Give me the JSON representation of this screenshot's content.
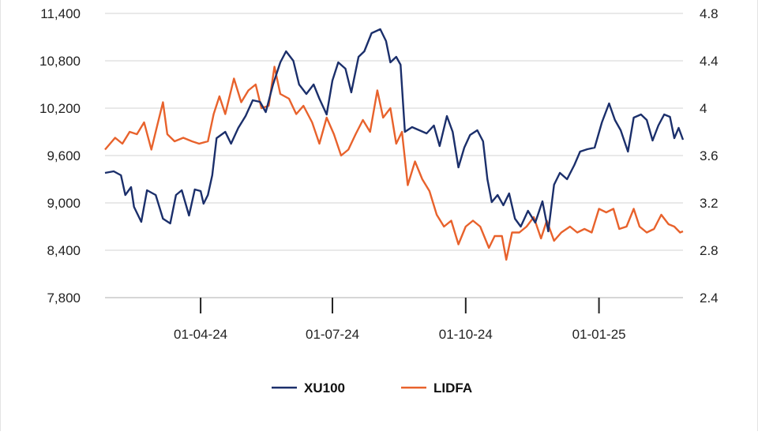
{
  "chart_data": {
    "type": "line",
    "title": "",
    "xlabel": "",
    "ylabel": "",
    "y_left": {
      "ticks": [
        7800,
        8400,
        9000,
        9600,
        10200,
        10800,
        11400
      ],
      "tick_labels": [
        "7,800",
        "8,400",
        "9,000",
        "9,600",
        "10,200",
        "10,800",
        "11,400"
      ],
      "range": [
        7800,
        11400
      ]
    },
    "y_right": {
      "ticks": [
        2.4,
        2.8,
        3.2,
        3.6,
        4.0,
        4.4,
        4.8
      ],
      "tick_labels": [
        "2.4",
        "2.8",
        "3.2",
        "3.6",
        "4",
        "4.4",
        "4.8"
      ],
      "range": [
        2.4,
        4.8
      ]
    },
    "x_range": [
      "2024-01-26",
      "2025-02-28"
    ],
    "x_ticks": [
      {
        "date": "2024-04-01",
        "label": "01-04-24"
      },
      {
        "date": "2024-07-01",
        "label": "01-07-24"
      },
      {
        "date": "2024-10-01",
        "label": "01-10-24"
      },
      {
        "date": "2025-01-01",
        "label": "01-01-25"
      }
    ],
    "grid": "horizontal",
    "legend": "bottom-center",
    "series": [
      {
        "name": "XU100",
        "axis": "left",
        "color": "#1b2f6b",
        "points": [
          [
            "2024-01-26",
            9380
          ],
          [
            "2024-02-01",
            9400
          ],
          [
            "2024-02-06",
            9350
          ],
          [
            "2024-02-09",
            9100
          ],
          [
            "2024-02-13",
            9200
          ],
          [
            "2024-02-15",
            8950
          ],
          [
            "2024-02-20",
            8760
          ],
          [
            "2024-02-24",
            9160
          ],
          [
            "2024-03-01",
            9100
          ],
          [
            "2024-03-06",
            8800
          ],
          [
            "2024-03-11",
            8740
          ],
          [
            "2024-03-15",
            9100
          ],
          [
            "2024-03-19",
            9160
          ],
          [
            "2024-03-24",
            8840
          ],
          [
            "2024-03-28",
            9170
          ],
          [
            "2024-04-01",
            9150
          ],
          [
            "2024-04-03",
            8990
          ],
          [
            "2024-04-06",
            9100
          ],
          [
            "2024-04-09",
            9350
          ],
          [
            "2024-04-12",
            9820
          ],
          [
            "2024-04-18",
            9900
          ],
          [
            "2024-04-22",
            9750
          ],
          [
            "2024-04-27",
            9950
          ],
          [
            "2024-05-02",
            10100
          ],
          [
            "2024-05-07",
            10300
          ],
          [
            "2024-05-12",
            10280
          ],
          [
            "2024-05-16",
            10150
          ],
          [
            "2024-05-21",
            10500
          ],
          [
            "2024-05-26",
            10780
          ],
          [
            "2024-05-30",
            10920
          ],
          [
            "2024-06-04",
            10800
          ],
          [
            "2024-06-08",
            10500
          ],
          [
            "2024-06-13",
            10380
          ],
          [
            "2024-06-18",
            10500
          ],
          [
            "2024-06-22",
            10320
          ],
          [
            "2024-06-27",
            10120
          ],
          [
            "2024-07-01",
            10550
          ],
          [
            "2024-07-05",
            10780
          ],
          [
            "2024-07-10",
            10700
          ],
          [
            "2024-07-14",
            10400
          ],
          [
            "2024-07-19",
            10850
          ],
          [
            "2024-07-23",
            10920
          ],
          [
            "2024-07-28",
            11150
          ],
          [
            "2024-08-03",
            11200
          ],
          [
            "2024-08-07",
            11050
          ],
          [
            "2024-08-10",
            10780
          ],
          [
            "2024-08-14",
            10850
          ],
          [
            "2024-08-17",
            10750
          ],
          [
            "2024-08-20",
            9900
          ],
          [
            "2024-08-25",
            9960
          ],
          [
            "2024-08-30",
            9920
          ],
          [
            "2024-09-04",
            9880
          ],
          [
            "2024-09-09",
            9980
          ],
          [
            "2024-09-13",
            9720
          ],
          [
            "2024-09-18",
            10100
          ],
          [
            "2024-09-22",
            9900
          ],
          [
            "2024-09-26",
            9450
          ],
          [
            "2024-09-30",
            9700
          ],
          [
            "2024-10-04",
            9860
          ],
          [
            "2024-10-09",
            9920
          ],
          [
            "2024-10-13",
            9780
          ],
          [
            "2024-10-16",
            9300
          ],
          [
            "2024-10-19",
            9010
          ],
          [
            "2024-10-23",
            9100
          ],
          [
            "2024-10-27",
            8970
          ],
          [
            "2024-10-31",
            9120
          ],
          [
            "2024-11-04",
            8800
          ],
          [
            "2024-11-08",
            8700
          ],
          [
            "2024-11-13",
            8900
          ],
          [
            "2024-11-18",
            8750
          ],
          [
            "2024-11-23",
            9020
          ],
          [
            "2024-11-27",
            8640
          ],
          [
            "2024-12-01",
            9230
          ],
          [
            "2024-12-05",
            9380
          ],
          [
            "2024-12-10",
            9300
          ],
          [
            "2024-12-15",
            9480
          ],
          [
            "2024-12-19",
            9650
          ],
          [
            "2024-12-24",
            9680
          ],
          [
            "2024-12-29",
            9700
          ],
          [
            "2025-01-03",
            10020
          ],
          [
            "2025-01-08",
            10260
          ],
          [
            "2025-01-12",
            10050
          ],
          [
            "2025-01-16",
            9920
          ],
          [
            "2025-01-21",
            9650
          ],
          [
            "2025-01-25",
            10080
          ],
          [
            "2025-01-30",
            10120
          ],
          [
            "2025-02-03",
            10050
          ],
          [
            "2025-02-07",
            9790
          ],
          [
            "2025-02-11",
            9980
          ],
          [
            "2025-02-15",
            10120
          ],
          [
            "2025-02-19",
            10090
          ],
          [
            "2025-02-22",
            9820
          ],
          [
            "2025-02-25",
            9950
          ],
          [
            "2025-02-28",
            9800
          ]
        ]
      },
      {
        "name": "LIDFA",
        "axis": "right",
        "color": "#e8622c",
        "points": [
          [
            "2024-01-26",
            3.65
          ],
          [
            "2024-02-02",
            3.75
          ],
          [
            "2024-02-07",
            3.7
          ],
          [
            "2024-02-12",
            3.8
          ],
          [
            "2024-02-17",
            3.78
          ],
          [
            "2024-02-22",
            3.88
          ],
          [
            "2024-02-27",
            3.65
          ],
          [
            "2024-03-02",
            3.85
          ],
          [
            "2024-03-06",
            4.05
          ],
          [
            "2024-03-09",
            3.78
          ],
          [
            "2024-03-14",
            3.72
          ],
          [
            "2024-03-20",
            3.75
          ],
          [
            "2024-03-26",
            3.72
          ],
          [
            "2024-03-31",
            3.7
          ],
          [
            "2024-04-06",
            3.72
          ],
          [
            "2024-04-10",
            3.95
          ],
          [
            "2024-04-14",
            4.1
          ],
          [
            "2024-04-18",
            3.95
          ],
          [
            "2024-04-24",
            4.25
          ],
          [
            "2024-04-29",
            4.05
          ],
          [
            "2024-05-04",
            4.15
          ],
          [
            "2024-05-09",
            4.2
          ],
          [
            "2024-05-13",
            4.0
          ],
          [
            "2024-05-18",
            4.02
          ],
          [
            "2024-05-22",
            4.35
          ],
          [
            "2024-05-26",
            4.12
          ],
          [
            "2024-06-01",
            4.08
          ],
          [
            "2024-06-06",
            3.95
          ],
          [
            "2024-06-11",
            4.02
          ],
          [
            "2024-06-17",
            3.88
          ],
          [
            "2024-06-22",
            3.7
          ],
          [
            "2024-06-27",
            3.92
          ],
          [
            "2024-07-02",
            3.78
          ],
          [
            "2024-07-07",
            3.6
          ],
          [
            "2024-07-12",
            3.65
          ],
          [
            "2024-07-17",
            3.78
          ],
          [
            "2024-07-22",
            3.9
          ],
          [
            "2024-07-27",
            3.8
          ],
          [
            "2024-08-01",
            4.15
          ],
          [
            "2024-08-05",
            3.92
          ],
          [
            "2024-08-10",
            4.0
          ],
          [
            "2024-08-14",
            3.7
          ],
          [
            "2024-08-18",
            3.8
          ],
          [
            "2024-08-22",
            3.35
          ],
          [
            "2024-08-27",
            3.55
          ],
          [
            "2024-09-01",
            3.4
          ],
          [
            "2024-09-06",
            3.3
          ],
          [
            "2024-09-11",
            3.1
          ],
          [
            "2024-09-16",
            3.0
          ],
          [
            "2024-09-21",
            3.05
          ],
          [
            "2024-09-26",
            2.85
          ],
          [
            "2024-10-01",
            3.0
          ],
          [
            "2024-10-06",
            3.05
          ],
          [
            "2024-10-11",
            3.0
          ],
          [
            "2024-10-17",
            2.82
          ],
          [
            "2024-10-21",
            2.92
          ],
          [
            "2024-10-26",
            2.92
          ],
          [
            "2024-10-29",
            2.72
          ],
          [
            "2024-11-02",
            2.95
          ],
          [
            "2024-11-07",
            2.95
          ],
          [
            "2024-11-12",
            3.0
          ],
          [
            "2024-11-17",
            3.08
          ],
          [
            "2024-11-22",
            2.9
          ],
          [
            "2024-11-26",
            3.05
          ],
          [
            "2024-12-01",
            2.88
          ],
          [
            "2024-12-06",
            2.95
          ],
          [
            "2024-12-12",
            3.0
          ],
          [
            "2024-12-17",
            2.95
          ],
          [
            "2024-12-22",
            2.98
          ],
          [
            "2024-12-27",
            2.95
          ],
          [
            "2025-01-01",
            3.15
          ],
          [
            "2025-01-06",
            3.12
          ],
          [
            "2025-01-11",
            3.15
          ],
          [
            "2025-01-15",
            2.98
          ],
          [
            "2025-01-20",
            3.0
          ],
          [
            "2025-01-25",
            3.15
          ],
          [
            "2025-01-29",
            3.0
          ],
          [
            "2025-02-03",
            2.95
          ],
          [
            "2025-02-08",
            2.98
          ],
          [
            "2025-02-13",
            3.1
          ],
          [
            "2025-02-18",
            3.02
          ],
          [
            "2025-02-22",
            3.0
          ],
          [
            "2025-02-26",
            2.95
          ],
          [
            "2025-02-28",
            2.96
          ]
        ]
      }
    ]
  }
}
